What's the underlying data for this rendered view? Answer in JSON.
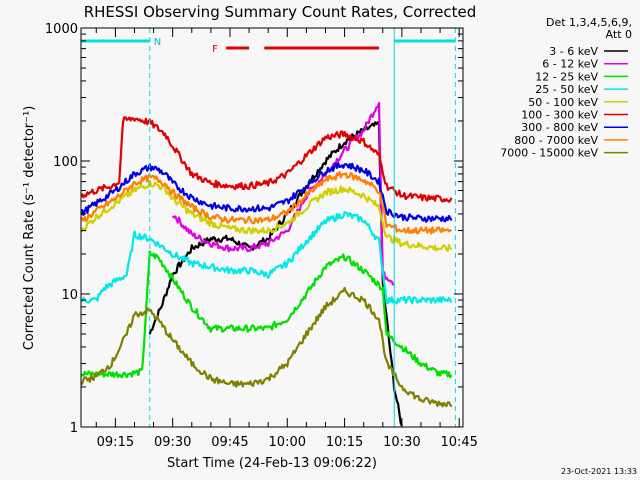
{
  "chart_data": {
    "type": "line",
    "title": "RHESSI Observing Summary Count Rates, Corrected",
    "xlabel": "Start Time (24-Feb-13 09:06:22)",
    "ylabel": "Corrected Count Rate (s⁻¹ detector⁻¹)",
    "yscale": "log",
    "ylim": [
      1,
      1000
    ],
    "xlim_minutes": [
      "09:06",
      "10:46"
    ],
    "yticks": [
      {
        "v": 1,
        "label": "1"
      },
      {
        "v": 10,
        "label": "10"
      },
      {
        "v": 100,
        "label": "100"
      },
      {
        "v": 1000,
        "label": "1000"
      }
    ],
    "xticks": [
      {
        "t": "09:15",
        "label": "09:15"
      },
      {
        "t": "09:30",
        "label": "09:30"
      },
      {
        "t": "09:45",
        "label": "09:45"
      },
      {
        "t": "10:00",
        "label": "10:00"
      },
      {
        "t": "10:15",
        "label": "10:15"
      },
      {
        "t": "10:30",
        "label": "10:30"
      },
      {
        "t": "10:45",
        "label": "10:45"
      }
    ],
    "legend_header": [
      "Det 1,3,4,5,6,9,",
      "Att 0"
    ],
    "legend_placement": "right",
    "annotations": {
      "night_label": "N",
      "flare_label": "F",
      "night_intervals": [
        [
          "09:06",
          "09:24"
        ],
        [
          "10:28",
          "10:44"
        ]
      ],
      "flare_intervals": [
        [
          "09:44",
          "09:50"
        ],
        [
          "09:54",
          "10:24"
        ]
      ],
      "timestamp": "23-Oct-2021 13:33"
    },
    "series": [
      {
        "name": "3 - 6 keV",
        "color": "#000000",
        "points": [
          [
            "09:24",
            5
          ],
          [
            "09:25",
            6
          ],
          [
            "09:27",
            8
          ],
          [
            "09:30",
            14
          ],
          [
            "09:35",
            22
          ],
          [
            "09:40",
            26
          ],
          [
            "09:45",
            26
          ],
          [
            "09:50",
            22
          ],
          [
            "09:55",
            26
          ],
          [
            "10:00",
            40
          ],
          [
            "10:05",
            65
          ],
          [
            "10:10",
            100
          ],
          [
            "10:15",
            140
          ],
          [
            "10:20",
            170
          ],
          [
            "10:24",
            190
          ],
          [
            "10:25",
            12
          ],
          [
            "10:28",
            2
          ],
          [
            "10:30",
            1
          ]
        ]
      },
      {
        "name": "6 - 12 keV",
        "color": "#e000e0",
        "points": [
          [
            "09:30",
            40
          ],
          [
            "09:35",
            28
          ],
          [
            "09:40",
            24
          ],
          [
            "09:45",
            22
          ],
          [
            "09:50",
            22
          ],
          [
            "09:55",
            24
          ],
          [
            "10:00",
            30
          ],
          [
            "10:05",
            55
          ],
          [
            "10:10",
            80
          ],
          [
            "10:15",
            120
          ],
          [
            "10:20",
            170
          ],
          [
            "10:24",
            280
          ],
          [
            "10:25",
            14
          ],
          [
            "10:27",
            13
          ],
          [
            "10:28",
            12
          ]
        ]
      },
      {
        "name": "12 - 25 keV",
        "color": "#00e000",
        "points": [
          [
            "09:06",
            2.5
          ],
          [
            "09:10",
            2.5
          ],
          [
            "09:14",
            2.5
          ],
          [
            "09:18",
            2.5
          ],
          [
            "09:22",
            2.6
          ],
          [
            "09:24",
            20
          ],
          [
            "09:26",
            19
          ],
          [
            "09:28",
            16
          ],
          [
            "09:30",
            13
          ],
          [
            "09:35",
            8
          ],
          [
            "09:40",
            5.5
          ],
          [
            "09:45",
            5.5
          ],
          [
            "09:50",
            5.5
          ],
          [
            "09:55",
            5.5
          ],
          [
            "10:00",
            6.5
          ],
          [
            "10:05",
            10
          ],
          [
            "10:10",
            16
          ],
          [
            "10:15",
            19
          ],
          [
            "10:20",
            15
          ],
          [
            "10:25",
            11
          ],
          [
            "10:26",
            5
          ],
          [
            "10:30",
            4
          ],
          [
            "10:35",
            3
          ],
          [
            "10:40",
            2.5
          ],
          [
            "10:43",
            2.5
          ]
        ]
      },
      {
        "name": "25 - 50 keV",
        "color": "#00e8e8",
        "points": [
          [
            "09:06",
            9
          ],
          [
            "09:10",
            9
          ],
          [
            "09:12",
            11
          ],
          [
            "09:16",
            13
          ],
          [
            "09:18",
            14
          ],
          [
            "09:20",
            28
          ],
          [
            "09:24",
            26
          ],
          [
            "09:28",
            22
          ],
          [
            "09:30",
            20
          ],
          [
            "09:35",
            17
          ],
          [
            "09:40",
            16
          ],
          [
            "09:45",
            15
          ],
          [
            "09:50",
            15
          ],
          [
            "09:55",
            14
          ],
          [
            "10:00",
            17
          ],
          [
            "10:05",
            25
          ],
          [
            "10:10",
            35
          ],
          [
            "10:15",
            40
          ],
          [
            "10:20",
            36
          ],
          [
            "10:24",
            25
          ],
          [
            "10:26",
            9
          ],
          [
            "10:30",
            9
          ],
          [
            "10:35",
            9
          ],
          [
            "10:40",
            9
          ],
          [
            "10:43",
            9
          ]
        ]
      },
      {
        "name": "50 - 100 keV",
        "color": "#d0d000",
        "points": [
          [
            "09:06",
            30
          ],
          [
            "09:10",
            38
          ],
          [
            "09:15",
            48
          ],
          [
            "09:20",
            60
          ],
          [
            "09:24",
            68
          ],
          [
            "09:26",
            66
          ],
          [
            "09:28",
            62
          ],
          [
            "09:30",
            52
          ],
          [
            "09:35",
            40
          ],
          [
            "09:40",
            34
          ],
          [
            "09:45",
            31
          ],
          [
            "09:50",
            30
          ],
          [
            "09:55",
            30
          ],
          [
            "10:00",
            34
          ],
          [
            "10:05",
            45
          ],
          [
            "10:10",
            58
          ],
          [
            "10:15",
            62
          ],
          [
            "10:20",
            55
          ],
          [
            "10:24",
            45
          ],
          [
            "10:26",
            27
          ],
          [
            "10:30",
            24
          ],
          [
            "10:35",
            23
          ],
          [
            "10:40",
            22
          ],
          [
            "10:43",
            22
          ]
        ]
      },
      {
        "name": "100 - 300 keV",
        "color": "#e00000",
        "points": [
          [
            "09:06",
            55
          ],
          [
            "09:10",
            60
          ],
          [
            "09:14",
            65
          ],
          [
            "09:16",
            70
          ],
          [
            "09:17",
            200
          ],
          [
            "09:20",
            210
          ],
          [
            "09:24",
            195
          ],
          [
            "09:28",
            160
          ],
          [
            "09:30",
            130
          ],
          [
            "09:35",
            80
          ],
          [
            "09:40",
            68
          ],
          [
            "09:45",
            65
          ],
          [
            "09:50",
            65
          ],
          [
            "09:55",
            68
          ],
          [
            "10:00",
            80
          ],
          [
            "10:05",
            110
          ],
          [
            "10:10",
            150
          ],
          [
            "10:15",
            160
          ],
          [
            "10:20",
            140
          ],
          [
            "10:24",
            110
          ],
          [
            "10:26",
            65
          ],
          [
            "10:30",
            55
          ],
          [
            "10:35",
            53
          ],
          [
            "10:40",
            52
          ],
          [
            "10:43",
            52
          ]
        ]
      },
      {
        "name": "300 - 800 keV",
        "color": "#0000e0",
        "points": [
          [
            "09:06",
            40
          ],
          [
            "09:10",
            48
          ],
          [
            "09:15",
            60
          ],
          [
            "09:20",
            80
          ],
          [
            "09:24",
            90
          ],
          [
            "09:26",
            87
          ],
          [
            "09:28",
            80
          ],
          [
            "09:30",
            68
          ],
          [
            "09:35",
            53
          ],
          [
            "09:40",
            46
          ],
          [
            "09:45",
            44
          ],
          [
            "09:50",
            44
          ],
          [
            "09:55",
            44
          ],
          [
            "10:00",
            50
          ],
          [
            "10:05",
            65
          ],
          [
            "10:10",
            85
          ],
          [
            "10:15",
            95
          ],
          [
            "10:20",
            85
          ],
          [
            "10:24",
            70
          ],
          [
            "10:26",
            42
          ],
          [
            "10:30",
            38
          ],
          [
            "10:35",
            37
          ],
          [
            "10:40",
            37
          ],
          [
            "10:43",
            37
          ]
        ]
      },
      {
        "name": "800 - 7000 keV",
        "color": "#ff8000",
        "points": [
          [
            "09:06",
            35
          ],
          [
            "09:10",
            42
          ],
          [
            "09:15",
            52
          ],
          [
            "09:20",
            68
          ],
          [
            "09:24",
            75
          ],
          [
            "09:26",
            73
          ],
          [
            "09:28",
            68
          ],
          [
            "09:30",
            58
          ],
          [
            "09:35",
            45
          ],
          [
            "09:40",
            38
          ],
          [
            "09:45",
            36
          ],
          [
            "09:50",
            36
          ],
          [
            "09:55",
            36
          ],
          [
            "10:00",
            41
          ],
          [
            "10:05",
            55
          ],
          [
            "10:10",
            72
          ],
          [
            "10:15",
            80
          ],
          [
            "10:20",
            72
          ],
          [
            "10:24",
            60
          ],
          [
            "10:26",
            33
          ],
          [
            "10:30",
            30
          ],
          [
            "10:35",
            30
          ],
          [
            "10:40",
            30
          ],
          [
            "10:43",
            30
          ]
        ]
      },
      {
        "name": "7000 - 15000 keV",
        "color": "#808000",
        "points": [
          [
            "09:06",
            2.2
          ],
          [
            "09:10",
            2.4
          ],
          [
            "09:14",
            3
          ],
          [
            "09:18",
            5
          ],
          [
            "09:20",
            7
          ],
          [
            "09:24",
            7.5
          ],
          [
            "09:26",
            6.5
          ],
          [
            "09:30",
            4.5
          ],
          [
            "09:35",
            3
          ],
          [
            "09:40",
            2.3
          ],
          [
            "09:45",
            2.1
          ],
          [
            "09:50",
            2.1
          ],
          [
            "09:55",
            2.3
          ],
          [
            "10:00",
            3
          ],
          [
            "10:05",
            5
          ],
          [
            "10:10",
            8
          ],
          [
            "10:15",
            10.5
          ],
          [
            "10:20",
            9
          ],
          [
            "10:24",
            6.5
          ],
          [
            "10:26",
            3
          ],
          [
            "10:30",
            2
          ],
          [
            "10:35",
            1.6
          ],
          [
            "10:40",
            1.5
          ],
          [
            "10:43",
            1.5
          ]
        ]
      }
    ]
  }
}
